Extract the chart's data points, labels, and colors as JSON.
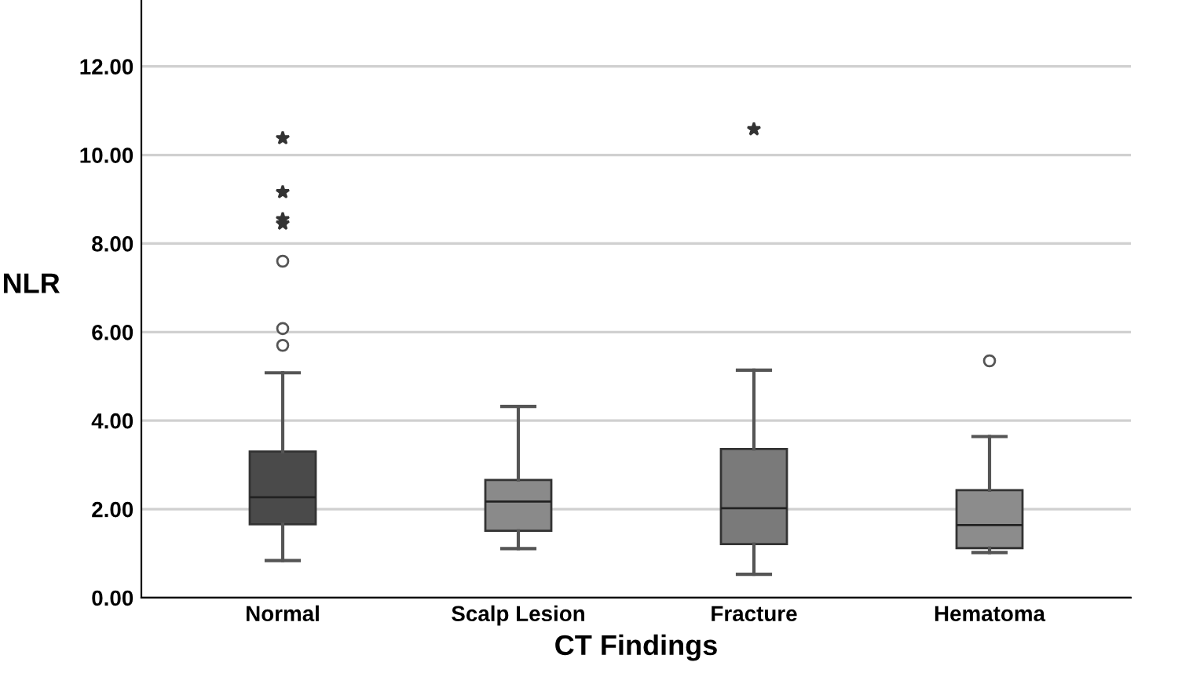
{
  "chart_data": {
    "type": "box",
    "xlabel": "CT Findings",
    "ylabel": "NLR",
    "categories": [
      "Normal",
      "Scalp Lesion",
      "Fracture",
      "Hematoma"
    ],
    "boxes": [
      {
        "low": 0.84,
        "q1": 1.66,
        "median": 2.27,
        "q3": 3.3,
        "high": 5.08,
        "outliers": [
          5.7,
          6.08,
          7.6,
          8.45,
          8.55,
          9.16,
          10.38
        ]
      },
      {
        "low": 1.11,
        "q1": 1.51,
        "median": 2.17,
        "q3": 2.66,
        "high": 4.32
      },
      {
        "low": 0.53,
        "q1": 1.21,
        "median": 2.02,
        "q3": 3.36,
        "high": 5.14,
        "outliers": [
          10.58
        ]
      },
      {
        "low": 1.02,
        "q1": 1.12,
        "median": 1.64,
        "q3": 2.43,
        "high": 3.64,
        "outliers": [
          5.35
        ]
      }
    ],
    "colors": [
      "#4a4a4a",
      "#8a8a8a",
      "#7a7a7a",
      "#8c8c8c"
    ],
    "ylim": [
      0,
      13.5
    ],
    "yticks": [
      {
        "value": 0,
        "label": "0.00"
      },
      {
        "value": 2,
        "label": "2.00"
      },
      {
        "value": 4,
        "label": "4.00"
      },
      {
        "value": 6,
        "label": "6.00"
      },
      {
        "value": 8,
        "label": "8.00"
      },
      {
        "value": 10,
        "label": "10.00"
      },
      {
        "value": 12,
        "label": "12.00"
      }
    ],
    "grid": "y"
  }
}
